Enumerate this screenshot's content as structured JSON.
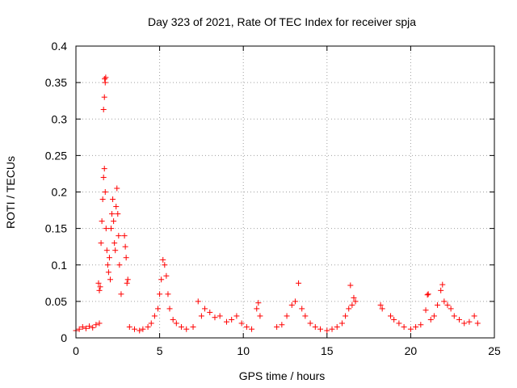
{
  "chart_data": {
    "type": "scatter",
    "title": "Day 323 of 2021, Rate Of TEC Index for receiver spja",
    "xlabel": "GPS time / hours",
    "ylabel": "ROTI / TECUs",
    "xlim": [
      0,
      25
    ],
    "ylim": [
      0,
      0.4
    ],
    "xticks": [
      0,
      5,
      10,
      15,
      20,
      25
    ],
    "xtick_labels": [
      "0",
      "5",
      "10",
      "15",
      "20",
      "25"
    ],
    "yticks": [
      0,
      0.05,
      0.1,
      0.15,
      0.2,
      0.25,
      0.3,
      0.35,
      0.4
    ],
    "ytick_labels": [
      "0",
      "0.05",
      "0.1",
      "0.15",
      "0.2",
      "0.25",
      "0.3",
      "0.35",
      "0.4"
    ],
    "grid": true,
    "marker": "+",
    "series_color": "#ff0000",
    "series": [
      {
        "name": "ROTI",
        "points": [
          [
            0.0,
            0.01
          ],
          [
            0.2,
            0.012
          ],
          [
            0.4,
            0.015
          ],
          [
            0.6,
            0.013
          ],
          [
            0.8,
            0.016
          ],
          [
            1.0,
            0.014
          ],
          [
            1.2,
            0.018
          ],
          [
            1.4,
            0.02
          ],
          [
            1.35,
            0.075
          ],
          [
            1.4,
            0.065
          ],
          [
            1.45,
            0.07
          ],
          [
            1.5,
            0.13
          ],
          [
            1.55,
            0.16
          ],
          [
            1.6,
            0.19
          ],
          [
            1.65,
            0.22
          ],
          [
            1.7,
            0.232
          ],
          [
            1.75,
            0.2
          ],
          [
            1.65,
            0.313
          ],
          [
            1.7,
            0.33
          ],
          [
            1.72,
            0.355
          ],
          [
            1.75,
            0.35
          ],
          [
            1.78,
            0.357
          ],
          [
            1.8,
            0.15
          ],
          [
            1.85,
            0.12
          ],
          [
            1.9,
            0.1
          ],
          [
            1.95,
            0.09
          ],
          [
            2.0,
            0.11
          ],
          [
            2.05,
            0.08
          ],
          [
            2.1,
            0.15
          ],
          [
            2.15,
            0.17
          ],
          [
            2.2,
            0.19
          ],
          [
            2.25,
            0.16
          ],
          [
            2.3,
            0.13
          ],
          [
            2.35,
            0.12
          ],
          [
            2.4,
            0.18
          ],
          [
            2.45,
            0.205
          ],
          [
            2.5,
            0.17
          ],
          [
            2.55,
            0.14
          ],
          [
            2.6,
            0.1
          ],
          [
            2.7,
            0.06
          ],
          [
            2.9,
            0.14
          ],
          [
            2.95,
            0.125
          ],
          [
            3.0,
            0.11
          ],
          [
            3.05,
            0.075
          ],
          [
            3.1,
            0.08
          ],
          [
            3.2,
            0.015
          ],
          [
            3.5,
            0.012
          ],
          [
            3.8,
            0.01
          ],
          [
            4.0,
            0.012
          ],
          [
            4.3,
            0.015
          ],
          [
            4.5,
            0.02
          ],
          [
            4.7,
            0.03
          ],
          [
            4.9,
            0.04
          ],
          [
            5.0,
            0.06
          ],
          [
            5.1,
            0.08
          ],
          [
            5.2,
            0.107
          ],
          [
            5.3,
            0.1
          ],
          [
            5.4,
            0.085
          ],
          [
            5.5,
            0.06
          ],
          [
            5.6,
            0.04
          ],
          [
            5.8,
            0.025
          ],
          [
            6.0,
            0.02
          ],
          [
            6.3,
            0.015
          ],
          [
            6.6,
            0.012
          ],
          [
            7.0,
            0.015
          ],
          [
            7.3,
            0.05
          ],
          [
            7.5,
            0.03
          ],
          [
            7.7,
            0.04
          ],
          [
            8.0,
            0.035
          ],
          [
            8.3,
            0.028
          ],
          [
            8.6,
            0.03
          ],
          [
            9.0,
            0.022
          ],
          [
            9.3,
            0.025
          ],
          [
            9.6,
            0.03
          ],
          [
            9.9,
            0.02
          ],
          [
            10.2,
            0.015
          ],
          [
            10.5,
            0.012
          ],
          [
            10.8,
            0.04
          ],
          [
            10.9,
            0.048
          ],
          [
            11.0,
            0.03
          ],
          [
            12.0,
            0.015
          ],
          [
            12.3,
            0.018
          ],
          [
            12.6,
            0.03
          ],
          [
            12.9,
            0.045
          ],
          [
            13.1,
            0.05
          ],
          [
            13.3,
            0.075
          ],
          [
            13.5,
            0.04
          ],
          [
            13.7,
            0.03
          ],
          [
            14.0,
            0.02
          ],
          [
            14.3,
            0.015
          ],
          [
            14.6,
            0.012
          ],
          [
            15.0,
            0.01
          ],
          [
            15.3,
            0.012
          ],
          [
            15.6,
            0.015
          ],
          [
            15.9,
            0.02
          ],
          [
            16.1,
            0.03
          ],
          [
            16.3,
            0.04
          ],
          [
            16.4,
            0.072
          ],
          [
            16.5,
            0.045
          ],
          [
            16.6,
            0.055
          ],
          [
            16.7,
            0.05
          ],
          [
            18.2,
            0.045
          ],
          [
            18.3,
            0.04
          ],
          [
            18.8,
            0.03
          ],
          [
            19.0,
            0.025
          ],
          [
            19.3,
            0.02
          ],
          [
            19.6,
            0.015
          ],
          [
            20.0,
            0.012
          ],
          [
            20.3,
            0.015
          ],
          [
            20.6,
            0.018
          ],
          [
            20.9,
            0.038
          ],
          [
            21.0,
            0.059
          ],
          [
            21.05,
            0.06
          ],
          [
            21.2,
            0.025
          ],
          [
            21.4,
            0.03
          ],
          [
            21.6,
            0.045
          ],
          [
            21.8,
            0.065
          ],
          [
            21.9,
            0.073
          ],
          [
            22.0,
            0.05
          ],
          [
            22.2,
            0.045
          ],
          [
            22.4,
            0.04
          ],
          [
            22.6,
            0.03
          ],
          [
            22.9,
            0.025
          ],
          [
            23.2,
            0.02
          ],
          [
            23.5,
            0.022
          ],
          [
            23.8,
            0.03
          ],
          [
            24.0,
            0.02
          ]
        ]
      }
    ]
  }
}
